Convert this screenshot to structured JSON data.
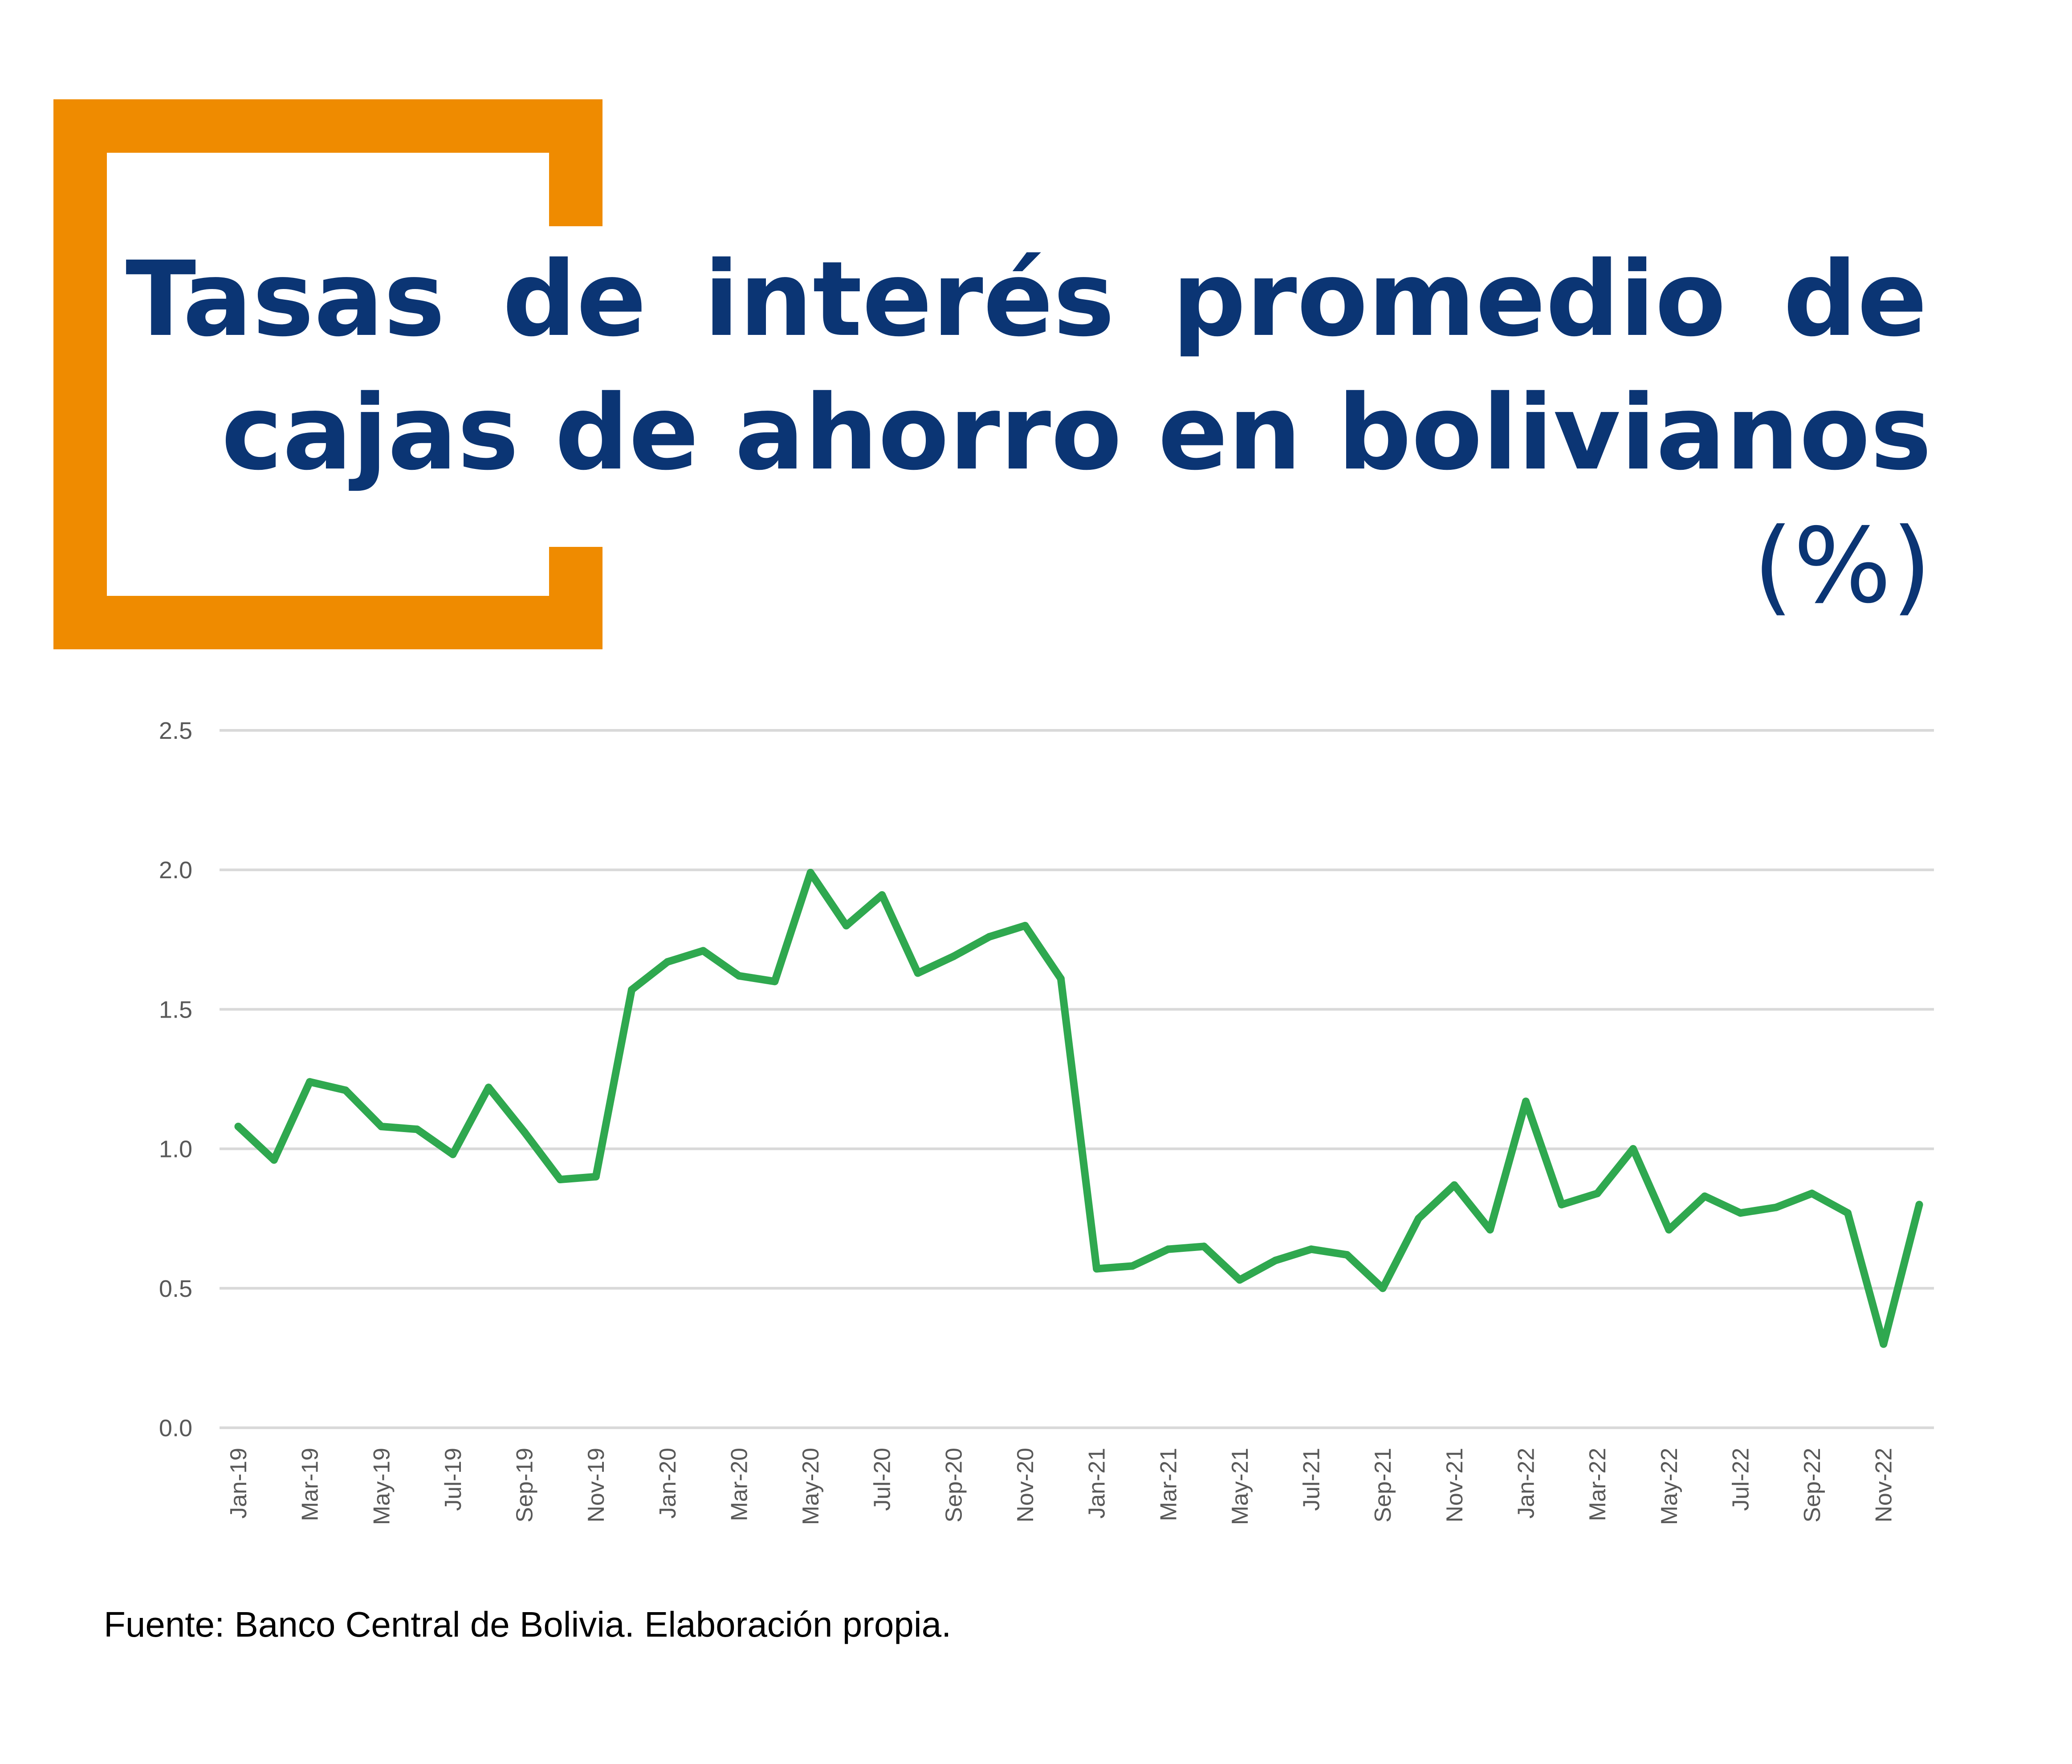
{
  "header": {
    "title_line1": "Tasas de interés promedio de",
    "title_line2": "cajas de ahorro en bolivianos",
    "title_unit": "(%)"
  },
  "colors": {
    "accent_bracket": "#EF8B00",
    "title": "#0B3574",
    "series_line": "#2FA84F",
    "gridline": "#D9D9D9",
    "axis_text": "#595959"
  },
  "chart_data": {
    "type": "line",
    "ylim": [
      0,
      2.5
    ],
    "yticks": [
      "0.0",
      "0.5",
      "1.0",
      "1.5",
      "2.0",
      "2.5"
    ],
    "grid": true,
    "x": [
      "Jan-19",
      "Feb-19",
      "Mar-19",
      "Apr-19",
      "May-19",
      "Jun-19",
      "Jul-19",
      "Aug-19",
      "Sep-19",
      "Oct-19",
      "Nov-19",
      "Dec-19",
      "Jan-20",
      "Feb-20",
      "Mar-20",
      "Apr-20",
      "May-20",
      "Jun-20",
      "Jul-20",
      "Aug-20",
      "Sep-20",
      "Oct-20",
      "Nov-20",
      "Dec-20",
      "Jan-21",
      "Feb-21",
      "Mar-21",
      "Apr-21",
      "May-21",
      "Jun-21",
      "Jul-21",
      "Aug-21",
      "Sep-21",
      "Oct-21",
      "Nov-21",
      "Dec-21",
      "Jan-22",
      "Feb-22",
      "Mar-22",
      "Apr-22",
      "May-22",
      "Jun-22",
      "Jul-22",
      "Aug-22",
      "Sep-22",
      "Oct-22",
      "Nov-22",
      "Dec-22"
    ],
    "x_tick_labels": [
      "Jan-19",
      "Mar-19",
      "May-19",
      "Jul-19",
      "Sep-19",
      "Nov-19",
      "Jan-20",
      "Mar-20",
      "May-20",
      "Jul-20",
      "Sep-20",
      "Nov-20",
      "Jan-21",
      "Mar-21",
      "May-21",
      "Jul-21",
      "Sep-21",
      "Nov-21",
      "Jan-22",
      "Mar-22",
      "May-22",
      "Jul-22",
      "Sep-22",
      "Nov-22"
    ],
    "series": [
      {
        "values": [
          1.08,
          0.96,
          1.24,
          1.21,
          1.08,
          1.07,
          0.98,
          1.22,
          1.06,
          0.89,
          0.9,
          1.57,
          1.67,
          1.71,
          1.62,
          1.6,
          1.99,
          1.8,
          1.91,
          1.63,
          1.69,
          1.76,
          1.8,
          1.61,
          0.57,
          0.58,
          0.64,
          0.65,
          0.53,
          0.6,
          0.64,
          0.62,
          0.5,
          0.75,
          0.87,
          0.71,
          1.17,
          0.8,
          0.84,
          1.0,
          0.71,
          0.83,
          0.77,
          0.79,
          0.84,
          0.77,
          0.3,
          0.8
        ]
      }
    ]
  },
  "source": "Fuente: Banco Central de Bolivia. Elaboración propia."
}
